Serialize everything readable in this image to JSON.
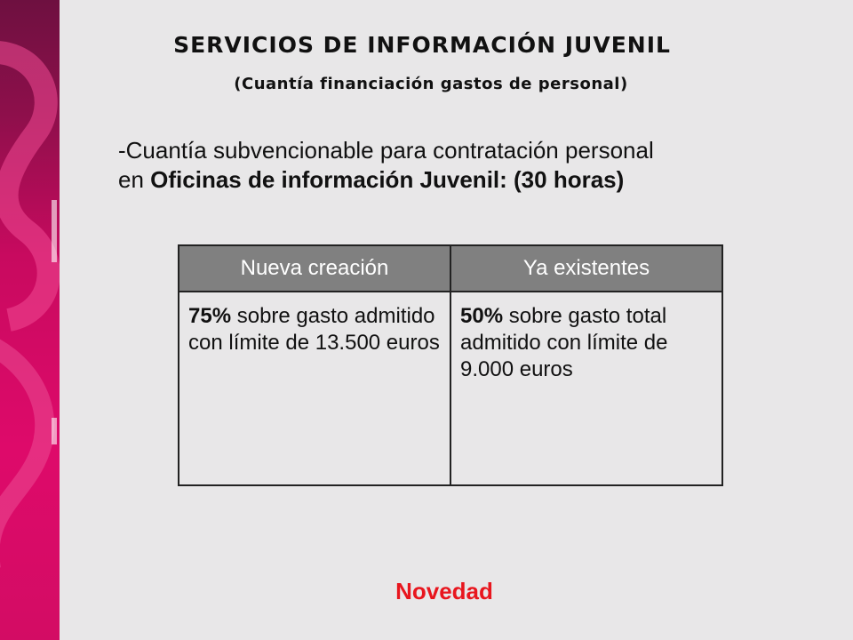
{
  "slide": {
    "title": "SERVICIOS DE INFORMACIÓN JUVENIL",
    "subtitle": "(Cuantía financiación gastos de personal)",
    "intro": {
      "line1": "-Cuantía subvencionable para contratación personal",
      "line2_prefix": "en ",
      "line2_bold": "Oficinas de información Juvenil: (30 horas)"
    },
    "table": {
      "headers": [
        "Nueva creación",
        "Ya existentes"
      ],
      "cells": [
        {
          "bold": "75%",
          "text": " sobre gasto admitido con límite de 13.500 euros"
        },
        {
          "bold": "50%",
          "text": " sobre gasto total admitido con límite de  9.000 euros"
        }
      ]
    },
    "footer_note": "Novedad"
  },
  "colors": {
    "background": "#e8e7e8",
    "side_band": "#d30c64",
    "header_fill": "#808080",
    "footer_note": "#e8161e"
  }
}
